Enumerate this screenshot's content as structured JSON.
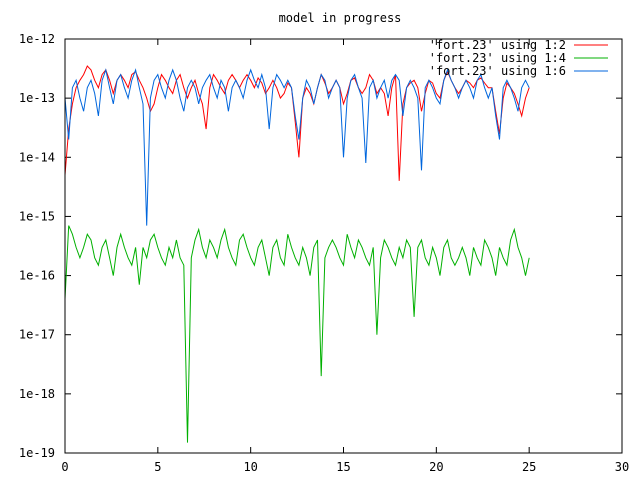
{
  "chart_data": {
    "type": "line",
    "title": "model in progress",
    "xlabel": "",
    "ylabel": "",
    "xlim": [
      0,
      30
    ],
    "ylim": [
      1e-19,
      1e-12
    ],
    "y_scale": "log",
    "x_ticks": [
      "0",
      "5",
      "10",
      "15",
      "20",
      "25",
      "30"
    ],
    "y_ticks": [
      "1e-19",
      "1e-18",
      "1e-17",
      "1e-16",
      "1e-15",
      "1e-14",
      "1e-13",
      "1e-12"
    ],
    "grid": false,
    "legend_position": "top-right",
    "series": [
      {
        "name": "'fort.23' using 1:2",
        "color": "#ff0000",
        "x": [
          0.0,
          0.2,
          0.4,
          0.6,
          0.8,
          1.0,
          1.2,
          1.4,
          1.6,
          1.8,
          2.0,
          2.2,
          2.4,
          2.6,
          2.8,
          3.0,
          3.2,
          3.4,
          3.6,
          3.8,
          4.0,
          4.2,
          4.4,
          4.6,
          4.8,
          5.0,
          5.2,
          5.4,
          5.6,
          5.8,
          6.0,
          6.2,
          6.4,
          6.6,
          6.8,
          7.0,
          7.2,
          7.4,
          7.6,
          7.8,
          8.0,
          8.2,
          8.4,
          8.6,
          8.8,
          9.0,
          9.2,
          9.4,
          9.6,
          9.8,
          10.0,
          10.2,
          10.4,
          10.6,
          10.8,
          11.0,
          11.2,
          11.4,
          11.6,
          11.8,
          12.0,
          12.2,
          12.4,
          12.6,
          12.8,
          13.0,
          13.2,
          13.4,
          13.6,
          13.8,
          14.0,
          14.2,
          14.4,
          14.6,
          14.8,
          15.0,
          15.2,
          15.4,
          15.6,
          15.8,
          16.0,
          16.2,
          16.4,
          16.6,
          16.8,
          17.0,
          17.2,
          17.4,
          17.6,
          17.8,
          18.0,
          18.2,
          18.4,
          18.6,
          18.8,
          19.0,
          19.2,
          19.4,
          19.6,
          19.8,
          20.0,
          20.2,
          20.4,
          20.6,
          20.8,
          21.0,
          21.2,
          21.4,
          21.6,
          21.8,
          22.0,
          22.2,
          22.4,
          22.6,
          22.8,
          23.0,
          23.2,
          23.4,
          23.6,
          23.8,
          24.0,
          24.2,
          24.4,
          24.6,
          24.8,
          25.0
        ],
        "y": [
          5e-15,
          3e-14,
          8e-14,
          1.5e-13,
          2e-13,
          2.5e-13,
          3.5e-13,
          3e-13,
          2e-13,
          1.5e-13,
          2.5e-13,
          3e-13,
          2e-13,
          1.2e-13,
          2e-13,
          2.5e-13,
          2e-13,
          1.5e-13,
          2.5e-13,
          2.8e-13,
          2e-13,
          1.5e-13,
          1e-13,
          6e-14,
          8e-14,
          1.5e-13,
          2.5e-13,
          2e-13,
          1.5e-13,
          1.2e-13,
          2e-13,
          2.5e-13,
          1.5e-13,
          1e-13,
          1.5e-13,
          2e-13,
          1.2e-13,
          8e-14,
          3e-14,
          1.5e-13,
          2.5e-13,
          2e-13,
          1.5e-13,
          1.2e-13,
          2e-13,
          2.5e-13,
          2e-13,
          1.5e-13,
          2e-13,
          2.5e-13,
          2e-13,
          1.5e-13,
          2.2e-13,
          1.8e-13,
          1.2e-13,
          1.5e-13,
          2e-13,
          1.5e-13,
          1e-13,
          1.2e-13,
          1.8e-13,
          1.5e-13,
          4e-14,
          1e-14,
          1e-13,
          1.5e-13,
          1.2e-13,
          8e-14,
          1.5e-13,
          2.5e-13,
          1.8e-13,
          1.2e-13,
          1.5e-13,
          2e-13,
          1.5e-13,
          8e-14,
          1.2e-13,
          2e-13,
          2.2e-13,
          1.5e-13,
          1.2e-13,
          1.5e-13,
          2.5e-13,
          2e-13,
          1.2e-13,
          1.5e-13,
          1.2e-13,
          5e-14,
          1.5e-13,
          2.5e-13,
          4e-15,
          8e-14,
          1.5e-13,
          1.8e-13,
          2e-13,
          1.5e-13,
          6e-14,
          1.2e-13,
          2e-13,
          1.8e-13,
          1.2e-13,
          1e-13,
          2e-13,
          2.8e-13,
          2e-13,
          1.5e-13,
          1.2e-13,
          1.5e-13,
          2e-13,
          1.8e-13,
          1.5e-13,
          2e-13,
          2.2e-13,
          1.8e-13,
          1.5e-13,
          1.5e-13,
          6e-14,
          2.5e-14,
          1e-13,
          1.8e-13,
          1.5e-13,
          1.2e-13,
          8e-14,
          5e-14,
          1e-13,
          1.5e-13
        ]
      },
      {
        "name": "'fort.23' using 1:4",
        "color": "#00b000",
        "x": [
          0.0,
          0.2,
          0.4,
          0.6,
          0.8,
          1.0,
          1.2,
          1.4,
          1.6,
          1.8,
          2.0,
          2.2,
          2.4,
          2.6,
          2.8,
          3.0,
          3.2,
          3.4,
          3.6,
          3.8,
          4.0,
          4.2,
          4.4,
          4.6,
          4.8,
          5.0,
          5.2,
          5.4,
          5.6,
          5.8,
          6.0,
          6.2,
          6.4,
          6.6,
          6.8,
          7.0,
          7.2,
          7.4,
          7.6,
          7.8,
          8.0,
          8.2,
          8.4,
          8.6,
          8.8,
          9.0,
          9.2,
          9.4,
          9.6,
          9.8,
          10.0,
          10.2,
          10.4,
          10.6,
          10.8,
          11.0,
          11.2,
          11.4,
          11.6,
          11.8,
          12.0,
          12.2,
          12.4,
          12.6,
          12.8,
          13.0,
          13.2,
          13.4,
          13.6,
          13.8,
          14.0,
          14.2,
          14.4,
          14.6,
          14.8,
          15.0,
          15.2,
          15.4,
          15.6,
          15.8,
          16.0,
          16.2,
          16.4,
          16.6,
          16.8,
          17.0,
          17.2,
          17.4,
          17.6,
          17.8,
          18.0,
          18.2,
          18.4,
          18.6,
          18.8,
          19.0,
          19.2,
          19.4,
          19.6,
          19.8,
          20.0,
          20.2,
          20.4,
          20.6,
          20.8,
          21.0,
          21.2,
          21.4,
          21.6,
          21.8,
          22.0,
          22.2,
          22.4,
          22.6,
          22.8,
          23.0,
          23.2,
          23.4,
          23.6,
          23.8,
          24.0,
          24.2,
          24.4,
          24.6,
          24.8,
          25.0
        ],
        "y": [
          4e-17,
          7e-16,
          5e-16,
          3e-16,
          2e-16,
          3e-16,
          5e-16,
          4e-16,
          2e-16,
          1.5e-16,
          3e-16,
          4e-16,
          2e-16,
          1e-16,
          3e-16,
          5e-16,
          3e-16,
          2e-16,
          1.5e-16,
          3e-16,
          7e-17,
          3e-16,
          2e-16,
          4e-16,
          5e-16,
          3e-16,
          2e-16,
          1.5e-16,
          3e-16,
          2e-16,
          4e-16,
          2e-16,
          1.5e-16,
          1.5e-19,
          2e-16,
          4e-16,
          6e-16,
          3e-16,
          2e-16,
          4e-16,
          3e-16,
          2e-16,
          4e-16,
          6e-16,
          3e-16,
          2e-16,
          1.5e-16,
          4e-16,
          5e-16,
          3e-16,
          2e-16,
          1.5e-16,
          3e-16,
          4e-16,
          2e-16,
          1e-16,
          3e-16,
          4e-16,
          2e-16,
          1.5e-16,
          5e-16,
          3e-16,
          2e-16,
          1.5e-16,
          3e-16,
          2e-16,
          1e-16,
          3e-16,
          4e-16,
          2e-18,
          2e-16,
          3e-16,
          4e-16,
          3e-16,
          2e-16,
          1.5e-16,
          5e-16,
          3e-16,
          2e-16,
          4e-16,
          3e-16,
          2e-16,
          1.5e-16,
          3e-16,
          1e-17,
          2e-16,
          4e-16,
          3e-16,
          2e-16,
          1.5e-16,
          3e-16,
          2e-16,
          4e-16,
          3e-16,
          2e-17,
          3e-16,
          4e-16,
          2e-16,
          1.5e-16,
          3e-16,
          2e-16,
          1e-16,
          3e-16,
          4e-16,
          2e-16,
          1.5e-16,
          2e-16,
          3e-16,
          2e-16,
          1e-16,
          3e-16,
          2e-16,
          1.5e-16,
          4e-16,
          3e-16,
          2e-16,
          1e-16,
          3e-16,
          2e-16,
          1.5e-16,
          4e-16,
          6e-16,
          3e-16,
          2e-16,
          1e-16,
          2e-16
        ]
      },
      {
        "name": "'fort.23' using 1:6",
        "color": "#0066dd",
        "x": [
          0.0,
          0.2,
          0.4,
          0.6,
          0.8,
          1.0,
          1.2,
          1.4,
          1.6,
          1.8,
          2.0,
          2.2,
          2.4,
          2.6,
          2.8,
          3.0,
          3.2,
          3.4,
          3.6,
          3.8,
          4.0,
          4.2,
          4.4,
          4.6,
          4.8,
          5.0,
          5.2,
          5.4,
          5.6,
          5.8,
          6.0,
          6.2,
          6.4,
          6.6,
          6.8,
          7.0,
          7.2,
          7.4,
          7.6,
          7.8,
          8.0,
          8.2,
          8.4,
          8.6,
          8.8,
          9.0,
          9.2,
          9.4,
          9.6,
          9.8,
          10.0,
          10.2,
          10.4,
          10.6,
          10.8,
          11.0,
          11.2,
          11.4,
          11.6,
          11.8,
          12.0,
          12.2,
          12.4,
          12.6,
          12.8,
          13.0,
          13.2,
          13.4,
          13.6,
          13.8,
          14.0,
          14.2,
          14.4,
          14.6,
          14.8,
          15.0,
          15.2,
          15.4,
          15.6,
          15.8,
          16.0,
          16.2,
          16.4,
          16.6,
          16.8,
          17.0,
          17.2,
          17.4,
          17.6,
          17.8,
          18.0,
          18.2,
          18.4,
          18.6,
          18.8,
          19.0,
          19.2,
          19.4,
          19.6,
          19.8,
          20.0,
          20.2,
          20.4,
          20.6,
          20.8,
          21.0,
          21.2,
          21.4,
          21.6,
          21.8,
          22.0,
          22.2,
          22.4,
          22.6,
          22.8,
          23.0,
          23.2,
          23.4,
          23.6,
          23.8,
          24.0,
          24.2,
          24.4,
          24.6,
          24.8,
          25.0
        ],
        "y": [
          1e-13,
          2e-14,
          1.5e-13,
          2e-13,
          1e-13,
          6e-14,
          1.5e-13,
          2e-13,
          1.2e-13,
          5e-14,
          2e-13,
          3e-13,
          1.5e-13,
          8e-14,
          2e-13,
          2.5e-13,
          1.5e-13,
          1e-13,
          2e-13,
          3e-13,
          1.5e-13,
          8e-14,
          7e-16,
          1e-13,
          2e-13,
          2.5e-13,
          1.5e-13,
          1e-13,
          2e-13,
          3e-13,
          2e-13,
          1e-13,
          6e-14,
          1.5e-13,
          2e-13,
          1.5e-13,
          8e-14,
          1.5e-13,
          2e-13,
          2.5e-13,
          1.5e-13,
          1e-13,
          2e-13,
          1.5e-13,
          6e-14,
          1.5e-13,
          2e-13,
          1.5e-13,
          1e-13,
          2e-13,
          3e-13,
          2e-13,
          1.5e-13,
          2.5e-13,
          1.5e-13,
          3e-14,
          1.5e-13,
          2.5e-13,
          2e-13,
          1.5e-13,
          2e-13,
          1.5e-13,
          5e-14,
          2e-14,
          1e-13,
          2e-13,
          1.5e-13,
          8e-14,
          1.5e-13,
          2.5e-13,
          2e-13,
          1e-13,
          1.5e-13,
          2e-13,
          1.5e-13,
          1e-14,
          1e-13,
          2e-13,
          2.5e-13,
          1.5e-13,
          1e-13,
          8e-15,
          1.5e-13,
          2e-13,
          1e-13,
          1.5e-13,
          2e-13,
          1e-13,
          2e-13,
          2.5e-13,
          2e-13,
          5e-14,
          1.5e-13,
          2e-13,
          1.5e-13,
          1e-13,
          6e-15,
          1.5e-13,
          2e-13,
          1.5e-13,
          1e-13,
          8e-14,
          2e-13,
          3e-13,
          2e-13,
          1.5e-13,
          1e-13,
          1.5e-13,
          2e-13,
          1.5e-13,
          1e-13,
          2e-13,
          2.5e-13,
          1.5e-13,
          1e-13,
          1.5e-13,
          5e-14,
          2e-14,
          1.5e-13,
          2e-13,
          1.5e-13,
          1e-13,
          6e-14,
          1.5e-13,
          2e-13,
          1.5e-13
        ]
      }
    ]
  }
}
